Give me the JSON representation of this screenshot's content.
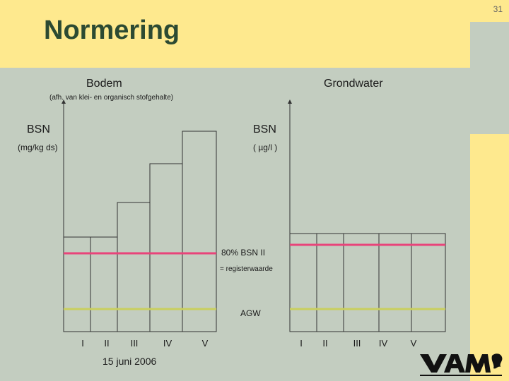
{
  "page_number": "31",
  "title": "Normering",
  "left_panel": {
    "header": "Bodem",
    "subheader": "(afh. van klei- en organisch stofgehalte)",
    "axis_label": "BSN",
    "axis_unit": "(mg/kg ds)",
    "classes": [
      "I",
      "II",
      "III",
      "IV",
      "V"
    ]
  },
  "right_panel": {
    "header": "Grondwater",
    "axis_label": "BSN",
    "axis_unit": "( µg/l )",
    "classes": [
      "I",
      "II",
      "III",
      "IV",
      "V"
    ]
  },
  "annotations": {
    "bsn_line_label": "80% BSN II",
    "register_label": "= registerwaarde",
    "agw_label": "AGW"
  },
  "colors": {
    "bsn_line": "#e8447a",
    "agw_line": "#c9cf5e",
    "yellow": "#fee98e",
    "background": "#c3cdc0"
  },
  "footer": {
    "date": "15 juni 2006"
  },
  "logo_text": "VAM"
}
